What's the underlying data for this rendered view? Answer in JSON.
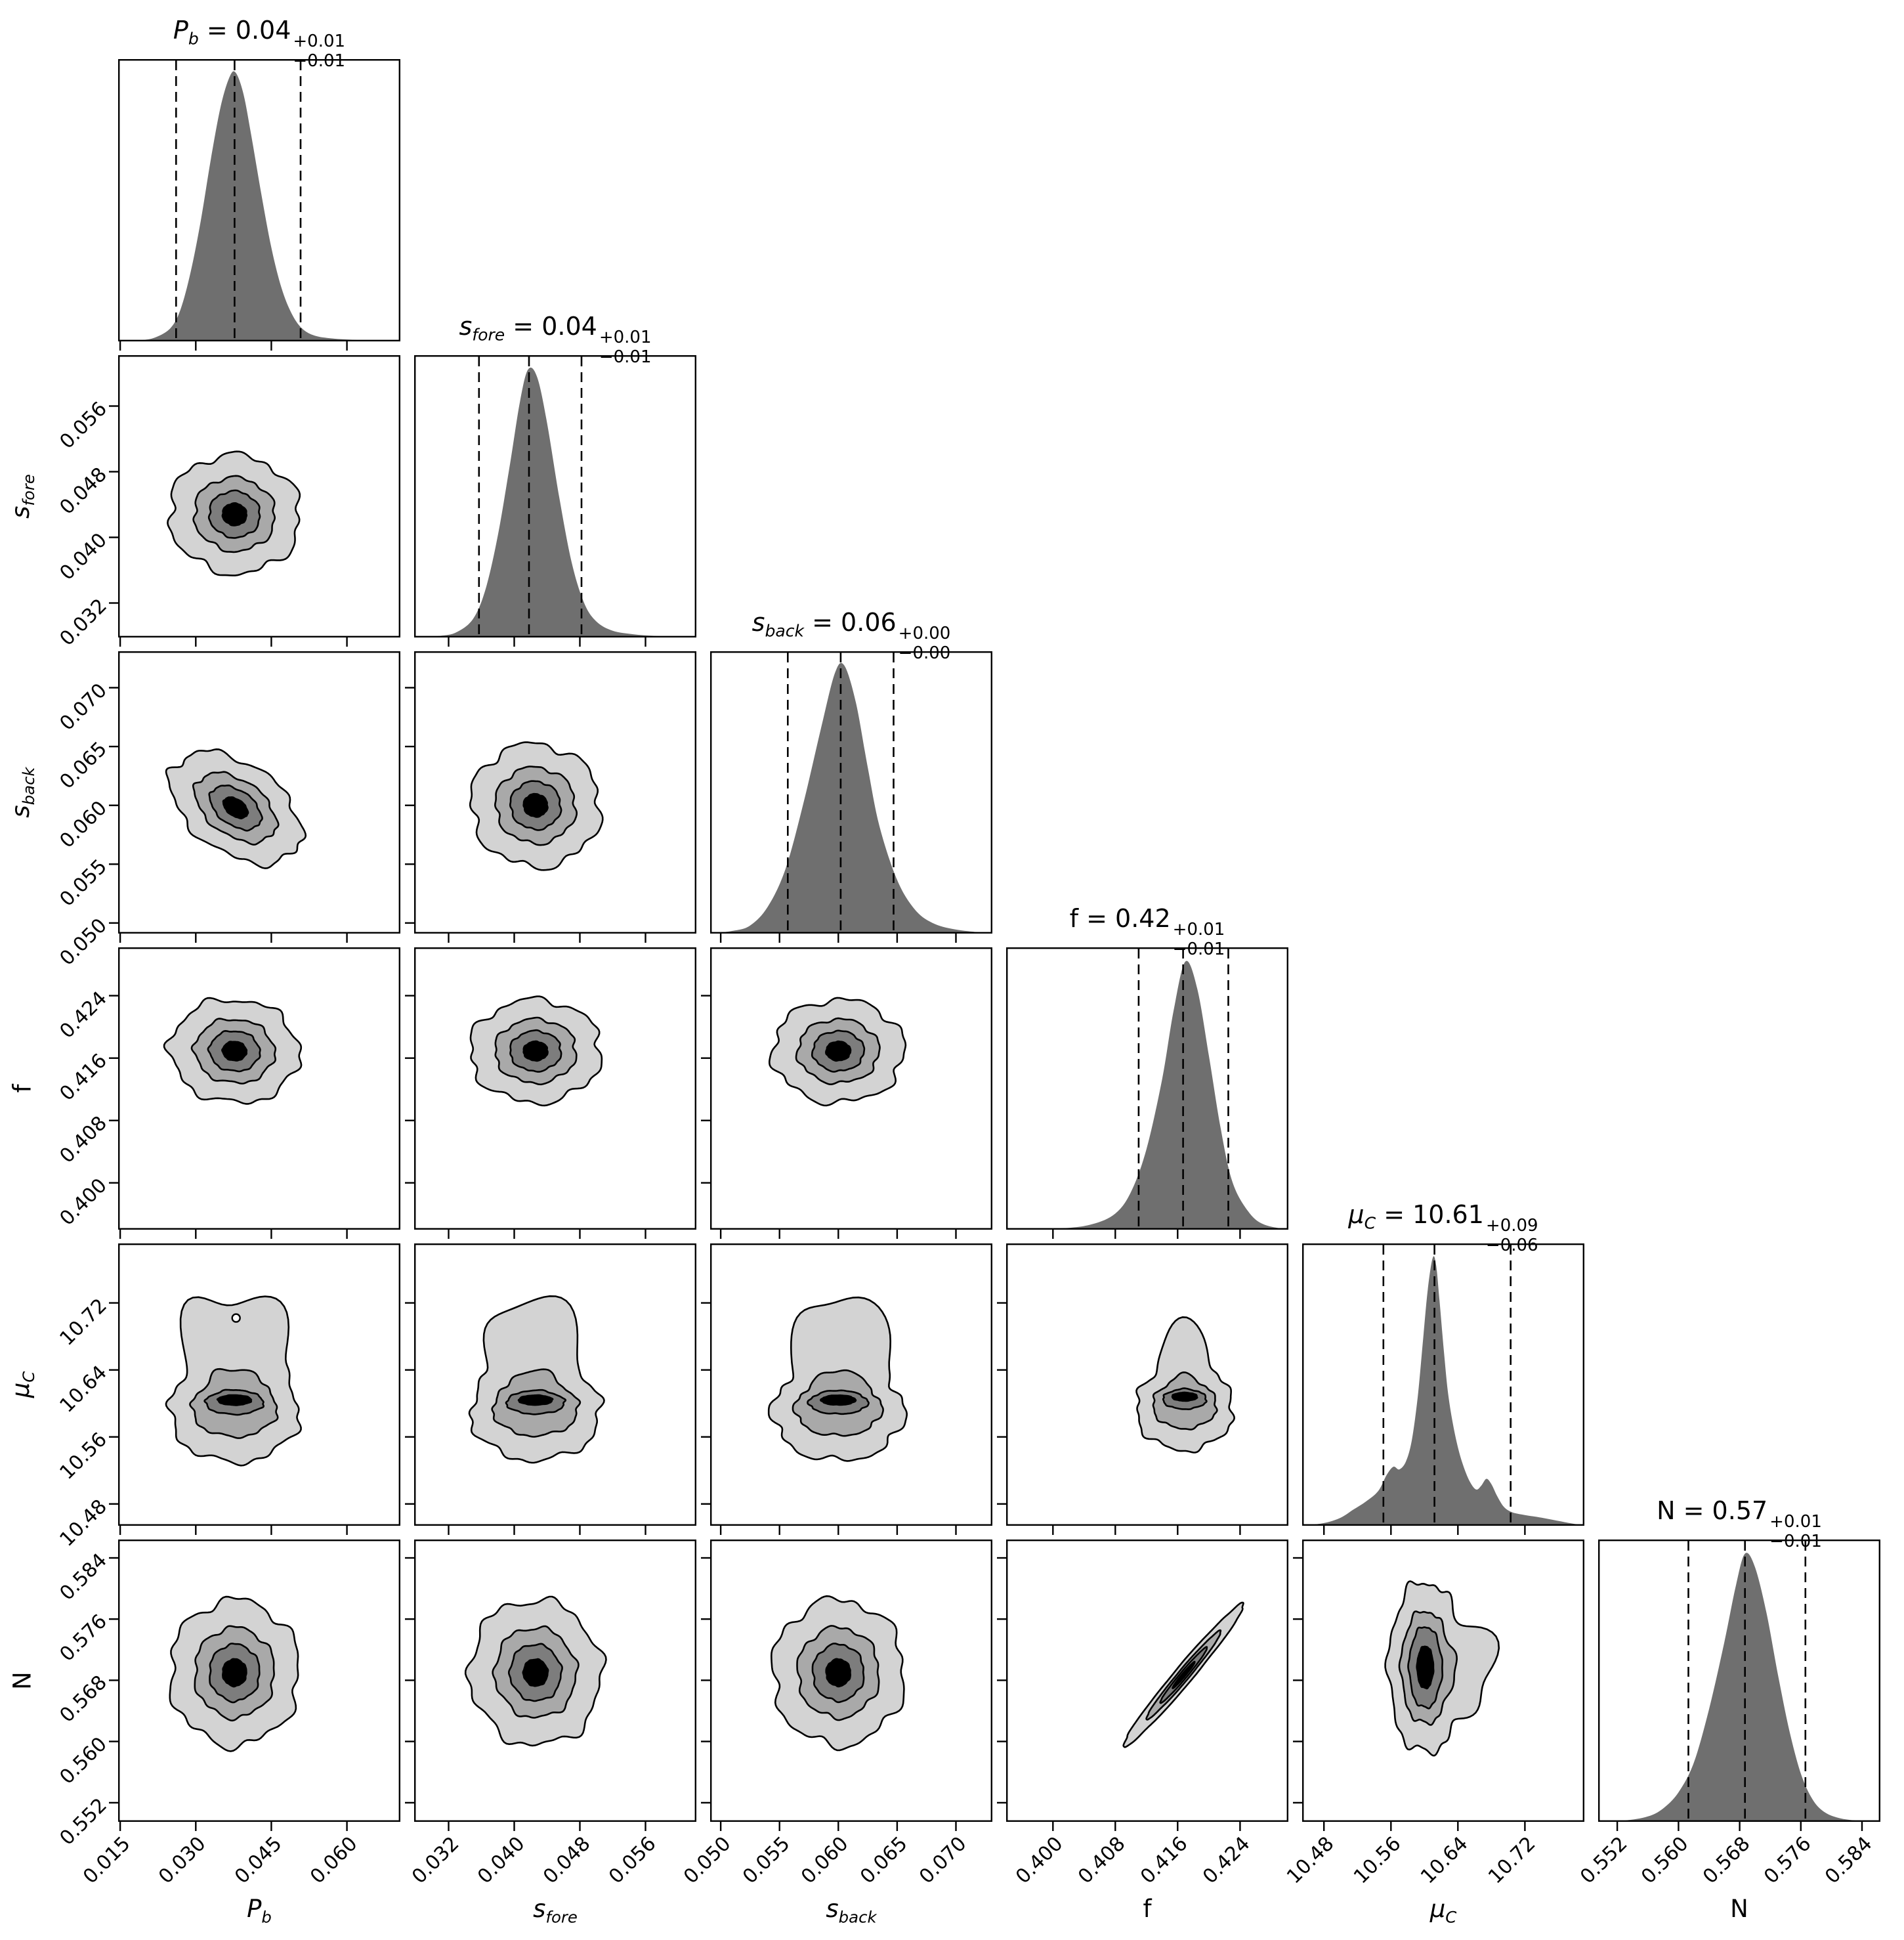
{
  "chart_data": {
    "type": "corner",
    "title": "",
    "n_params": 6,
    "grid": "lower-triangle 6x6, 1D marginal KDE histograms on diagonal, filled 2D contours below",
    "colors": {
      "background": "#ffffff",
      "hist_fill": "#6f6f6f",
      "contour_fills": [
        "#d3d3d3",
        "#a9a9a9",
        "#7d7d7d",
        "#000000"
      ],
      "line": "#000000"
    },
    "parameters": [
      {
        "key": "pb",
        "label": {
          "main": "P",
          "sub": "b",
          "italic": true
        },
        "summary": {
          "median": "0.04",
          "plus": "+0.01",
          "minus": "−0.01"
        },
        "range": [
          0.0146,
          0.0706
        ],
        "ticks": {
          "values": [
            0.015,
            0.03,
            0.045,
            0.06
          ],
          "labels": [
            "0.015",
            "0.030",
            "0.045",
            "0.060"
          ]
        },
        "quantiles": [
          0.0261,
          0.0377,
          0.0508
        ],
        "density": [
          [
            0.0146,
            0
          ],
          [
            0.019,
            0.004
          ],
          [
            0.022,
            0.015
          ],
          [
            0.025,
            0.05
          ],
          [
            0.027,
            0.12
          ],
          [
            0.029,
            0.26
          ],
          [
            0.031,
            0.45
          ],
          [
            0.033,
            0.68
          ],
          [
            0.035,
            0.88
          ],
          [
            0.0368,
            0.99
          ],
          [
            0.038,
            1.0
          ],
          [
            0.0395,
            0.92
          ],
          [
            0.041,
            0.77
          ],
          [
            0.043,
            0.55
          ],
          [
            0.045,
            0.35
          ],
          [
            0.047,
            0.2
          ],
          [
            0.049,
            0.105
          ],
          [
            0.051,
            0.05
          ],
          [
            0.0535,
            0.022
          ],
          [
            0.057,
            0.011
          ],
          [
            0.061,
            0.006
          ],
          [
            0.0655,
            0.002
          ],
          [
            0.0706,
            0
          ]
        ]
      },
      {
        "key": "sfore",
        "label": {
          "main": "s",
          "sub": "fore",
          "italic": true
        },
        "summary": {
          "median": "0.04",
          "plus": "+0.01",
          "minus": "−0.01"
        },
        "range": [
          0.0278,
          0.0622
        ],
        "ticks": {
          "values": [
            0.032,
            0.04,
            0.048,
            0.056
          ],
          "labels": [
            "0.032",
            "0.040",
            "0.048",
            "0.056"
          ]
        },
        "quantiles": [
          0.0357,
          0.0418,
          0.0482
        ],
        "density": [
          [
            0.0278,
            0
          ],
          [
            0.031,
            0.006
          ],
          [
            0.033,
            0.02
          ],
          [
            0.035,
            0.07
          ],
          [
            0.0365,
            0.18
          ],
          [
            0.038,
            0.38
          ],
          [
            0.0395,
            0.65
          ],
          [
            0.0407,
            0.88
          ],
          [
            0.0417,
            1.0
          ],
          [
            0.0428,
            0.97
          ],
          [
            0.044,
            0.8
          ],
          [
            0.0455,
            0.52
          ],
          [
            0.047,
            0.28
          ],
          [
            0.0485,
            0.13
          ],
          [
            0.05,
            0.06
          ],
          [
            0.052,
            0.025
          ],
          [
            0.0545,
            0.012
          ],
          [
            0.057,
            0.006
          ],
          [
            0.0595,
            0.003
          ],
          [
            0.0622,
            0
          ]
        ]
      },
      {
        "key": "sback",
        "label": {
          "main": "s",
          "sub": "back",
          "italic": true
        },
        "summary": {
          "median": "0.06",
          "plus": "+0.00",
          "minus": "−0.00"
        },
        "range": [
          0.0491,
          0.0731
        ],
        "ticks": {
          "values": [
            0.05,
            0.055,
            0.06,
            0.065,
            0.07
          ],
          "labels": [
            "0.050",
            "0.055",
            "0.060",
            "0.065",
            "0.070"
          ]
        },
        "quantiles": [
          0.0557,
          0.0602,
          0.0647
        ],
        "density": [
          [
            0.0491,
            0
          ],
          [
            0.051,
            0.01
          ],
          [
            0.0525,
            0.03
          ],
          [
            0.054,
            0.1
          ],
          [
            0.0555,
            0.24
          ],
          [
            0.057,
            0.48
          ],
          [
            0.0585,
            0.76
          ],
          [
            0.0597,
            0.97
          ],
          [
            0.0605,
            1.0
          ],
          [
            0.0615,
            0.86
          ],
          [
            0.0625,
            0.62
          ],
          [
            0.0635,
            0.4
          ],
          [
            0.065,
            0.2
          ],
          [
            0.0665,
            0.09
          ],
          [
            0.068,
            0.04
          ],
          [
            0.07,
            0.015
          ],
          [
            0.0731,
            0
          ]
        ]
      },
      {
        "key": "f",
        "label": {
          "main": "f",
          "sub": "",
          "italic": false
        },
        "summary": {
          "median": "0.42",
          "plus": "+0.01",
          "minus": "−0.01"
        },
        "range": [
          0.394,
          0.4302
        ],
        "ticks": {
          "values": [
            0.4,
            0.408,
            0.416,
            0.424
          ],
          "labels": [
            "0.400",
            "0.408",
            "0.416",
            "0.424"
          ]
        },
        "quantiles": [
          0.411,
          0.4167,
          0.4225
        ],
        "density": [
          [
            0.394,
            0
          ],
          [
            0.401,
            0.005
          ],
          [
            0.405,
            0.02
          ],
          [
            0.408,
            0.06
          ],
          [
            0.41,
            0.14
          ],
          [
            0.412,
            0.3
          ],
          [
            0.414,
            0.56
          ],
          [
            0.4155,
            0.82
          ],
          [
            0.417,
            1.0
          ],
          [
            0.4185,
            0.9
          ],
          [
            0.42,
            0.65
          ],
          [
            0.4215,
            0.38
          ],
          [
            0.423,
            0.18
          ],
          [
            0.425,
            0.07
          ],
          [
            0.427,
            0.02
          ],
          [
            0.4302,
            0
          ]
        ]
      },
      {
        "key": "muc",
        "label": {
          "main": "μ",
          "sub": "C",
          "italic": true
        },
        "summary": {
          "median": "10.61",
          "plus": "+0.09",
          "minus": "−0.06"
        },
        "range": [
          10.454,
          10.791
        ],
        "ticks": {
          "values": [
            10.48,
            10.56,
            10.64,
            10.72
          ],
          "labels": [
            "10.48",
            "10.56",
            "10.64",
            "10.72"
          ]
        },
        "quantiles": [
          10.551,
          10.612,
          10.703
        ],
        "density": [
          [
            10.454,
            0
          ],
          [
            10.48,
            0.01
          ],
          [
            10.5,
            0.03
          ],
          [
            10.515,
            0.06
          ],
          [
            10.53,
            0.09
          ],
          [
            10.545,
            0.13
          ],
          [
            10.555,
            0.19
          ],
          [
            10.563,
            0.22
          ],
          [
            10.57,
            0.21
          ],
          [
            10.578,
            0.24
          ],
          [
            10.585,
            0.32
          ],
          [
            10.592,
            0.48
          ],
          [
            10.598,
            0.68
          ],
          [
            10.604,
            0.88
          ],
          [
            10.61,
            1.0
          ],
          [
            10.614,
            0.97
          ],
          [
            10.618,
            0.84
          ],
          [
            10.623,
            0.66
          ],
          [
            10.628,
            0.5
          ],
          [
            10.634,
            0.38
          ],
          [
            10.641,
            0.28
          ],
          [
            10.648,
            0.21
          ],
          [
            10.655,
            0.16
          ],
          [
            10.662,
            0.135
          ],
          [
            10.668,
            0.15
          ],
          [
            10.674,
            0.175
          ],
          [
            10.68,
            0.155
          ],
          [
            10.687,
            0.11
          ],
          [
            10.695,
            0.07
          ],
          [
            10.705,
            0.05
          ],
          [
            10.72,
            0.04
          ],
          [
            10.74,
            0.03
          ],
          [
            10.76,
            0.018
          ],
          [
            10.775,
            0.009
          ],
          [
            10.791,
            0
          ]
        ]
      },
      {
        "key": "n",
        "label": {
          "main": "N",
          "sub": "",
          "italic": false
        },
        "summary": {
          "median": "0.57",
          "plus": "+0.01",
          "minus": "−0.01"
        },
        "range": [
          0.5495,
          0.5864
        ],
        "ticks": {
          "values": [
            0.552,
            0.56,
            0.568,
            0.576,
            0.584
          ],
          "labels": [
            "0.552",
            "0.560",
            "0.568",
            "0.576",
            "0.584"
          ]
        },
        "quantiles": [
          0.5613,
          0.5687,
          0.5766
        ],
        "density": [
          [
            0.5495,
            0
          ],
          [
            0.553,
            0.005
          ],
          [
            0.556,
            0.02
          ],
          [
            0.558,
            0.05
          ],
          [
            0.56,
            0.11
          ],
          [
            0.562,
            0.22
          ],
          [
            0.564,
            0.42
          ],
          [
            0.566,
            0.67
          ],
          [
            0.5675,
            0.88
          ],
          [
            0.5687,
            1.0
          ],
          [
            0.57,
            0.95
          ],
          [
            0.5715,
            0.78
          ],
          [
            0.573,
            0.55
          ],
          [
            0.5745,
            0.34
          ],
          [
            0.576,
            0.18
          ],
          [
            0.5775,
            0.085
          ],
          [
            0.579,
            0.038
          ],
          [
            0.581,
            0.014
          ],
          [
            0.5835,
            0.004
          ],
          [
            0.5864,
            0
          ]
        ]
      }
    ],
    "panels_2d": [
      {
        "row": 1,
        "col": 0,
        "cx": 0.0377,
        "cy": 0.0428,
        "rx": 0.013,
        "ry": 0.0072,
        "rot": -10
      },
      {
        "row": 2,
        "col": 0,
        "cx": 0.0379,
        "cy": 0.0598,
        "rx": 0.0146,
        "ry": 0.0038,
        "rot": -35
      },
      {
        "row": 2,
        "col": 1,
        "cx": 0.0426,
        "cy": 0.06,
        "rx": 0.0079,
        "ry": 0.0052,
        "rot": -14
      },
      {
        "row": 3,
        "col": 0,
        "cx": 0.0377,
        "cy": 0.4169,
        "rx": 0.0128,
        "ry": 0.0066,
        "rot": -5
      },
      {
        "row": 3,
        "col": 1,
        "cx": 0.0426,
        "cy": 0.4169,
        "rx": 0.008,
        "ry": 0.0066,
        "rot": 0
      },
      {
        "row": 3,
        "col": 2,
        "cx": 0.06,
        "cy": 0.4169,
        "rx": 0.0056,
        "ry": 0.0066,
        "rot": 0
      },
      {
        "row": 4,
        "col": 0,
        "cx": 0.0377,
        "cy": 10.59,
        "rx": 0.0128,
        "ry": 0.06,
        "rot": 0,
        "mu": true,
        "bumps": [
          {
            "a": 75,
            "amp": 1.35,
            "w": 13
          },
          {
            "a": 107,
            "amp": 1.2,
            "w": 12
          }
        ],
        "hole": {
          "x": 0.038,
          "y": 10.702,
          "r": 6
        }
      },
      {
        "row": 4,
        "col": 1,
        "cx": 0.0426,
        "cy": 10.59,
        "rx": 0.0079,
        "ry": 0.058,
        "rot": 0,
        "mu": true,
        "bumps": [
          {
            "a": 83,
            "amp": 1.3,
            "w": 14
          },
          {
            "a": 110,
            "amp": 0.85,
            "w": 11
          }
        ]
      },
      {
        "row": 4,
        "col": 2,
        "cx": 0.06,
        "cy": 10.59,
        "rx": 0.0056,
        "ry": 0.058,
        "rot": 0,
        "mu": true,
        "bumps": [
          {
            "a": 77,
            "amp": 1.25,
            "w": 13
          },
          {
            "a": 103,
            "amp": 1.0,
            "w": 12
          }
        ]
      },
      {
        "row": 4,
        "col": 3,
        "cx": 0.4169,
        "cy": 10.594,
        "rx": 0.0062,
        "ry": 0.05,
        "rot": 0,
        "mu": true,
        "bumps": [
          {
            "a": 90,
            "amp": 1.1,
            "w": 15
          }
        ]
      },
      {
        "row": 5,
        "col": 0,
        "cx": 0.0377,
        "cy": 0.569,
        "rx": 0.0128,
        "ry": 0.0095,
        "rot": 0
      },
      {
        "row": 5,
        "col": 1,
        "cx": 0.0426,
        "cy": 0.569,
        "rx": 0.008,
        "ry": 0.0095,
        "rot": 8
      },
      {
        "row": 5,
        "col": 2,
        "cx": 0.06,
        "cy": 0.569,
        "rx": 0.0056,
        "ry": 0.0095,
        "rot": 0
      },
      {
        "row": 5,
        "col": 3,
        "frac": true,
        "cxf": 0.629,
        "cyf": 0.52,
        "rxf": 0.33,
        "ryf": 0.032,
        "rot": 50,
        "smooth": 0.35
      },
      {
        "row": 5,
        "col": 4,
        "cx": 10.601,
        "cy": 0.5697,
        "rx": 0.044,
        "ry": 0.0112,
        "rot": 0,
        "tall": true,
        "bumps": [
          {
            "a": 7,
            "amp": 1.0,
            "w": 10
          },
          {
            "a": -20,
            "amp": 0.45,
            "w": 9
          }
        ]
      }
    ]
  }
}
